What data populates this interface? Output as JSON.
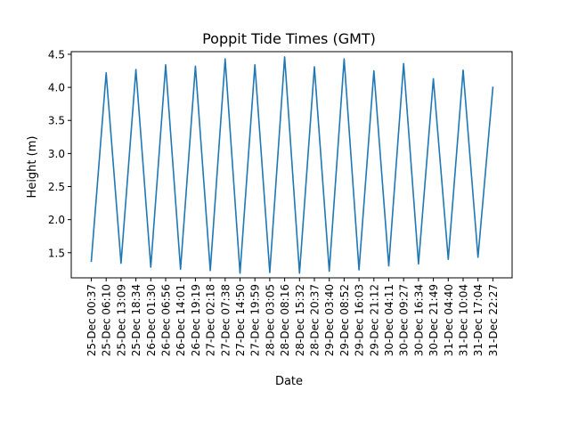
{
  "chart_data": {
    "type": "line",
    "title": "Poppit Tide Times (GMT)",
    "xlabel": "Date",
    "ylabel": "Height (m)",
    "ylim": [
      1.12,
      4.54
    ],
    "yticks": [
      "1.5",
      "2.0",
      "2.5",
      "3.0",
      "3.5",
      "4.0",
      "4.5"
    ],
    "ytick_values": [
      1.5,
      2.0,
      2.5,
      3.0,
      3.5,
      4.0,
      4.5
    ],
    "grid": false,
    "line_color": "#1f77b4",
    "categories": [
      "25-Dec 00:37",
      "25-Dec 06:10",
      "25-Dec 13:09",
      "25-Dec 18:34",
      "26-Dec 01:30",
      "26-Dec 06:56",
      "26-Dec 14:01",
      "26-Dec 19:19",
      "27-Dec 02:18",
      "27-Dec 07:38",
      "27-Dec 14:50",
      "27-Dec 19:59",
      "28-Dec 03:05",
      "28-Dec 08:16",
      "28-Dec 15:32",
      "28-Dec 20:37",
      "29-Dec 03:40",
      "29-Dec 08:52",
      "29-Dec 16:03",
      "29-Dec 21:12",
      "30-Dec 04:11",
      "30-Dec 09:27",
      "30-Dec 16:34",
      "30-Dec 21:49",
      "31-Dec 04:40",
      "31-Dec 10:04",
      "31-Dec 17:04",
      "31-Dec 22:27"
    ],
    "values": [
      1.37,
      4.22,
      1.34,
      4.27,
      1.28,
      4.34,
      1.25,
      4.32,
      1.23,
      4.43,
      1.19,
      4.34,
      1.2,
      4.46,
      1.19,
      4.31,
      1.22,
      4.43,
      1.24,
      4.25,
      1.3,
      4.36,
      1.33,
      4.13,
      1.4,
      4.26,
      1.43,
      4.0
    ]
  }
}
